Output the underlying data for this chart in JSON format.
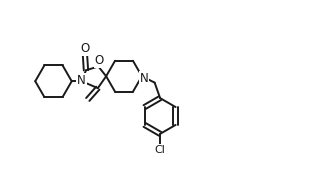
{
  "bg_color": "#ffffff",
  "line_color": "#1a1a1a",
  "lw": 1.4,
  "fig_width": 3.12,
  "fig_height": 1.95,
  "dpi": 100,
  "xlim": [
    0,
    3.12
  ],
  "ylim": [
    0,
    1.95
  ]
}
